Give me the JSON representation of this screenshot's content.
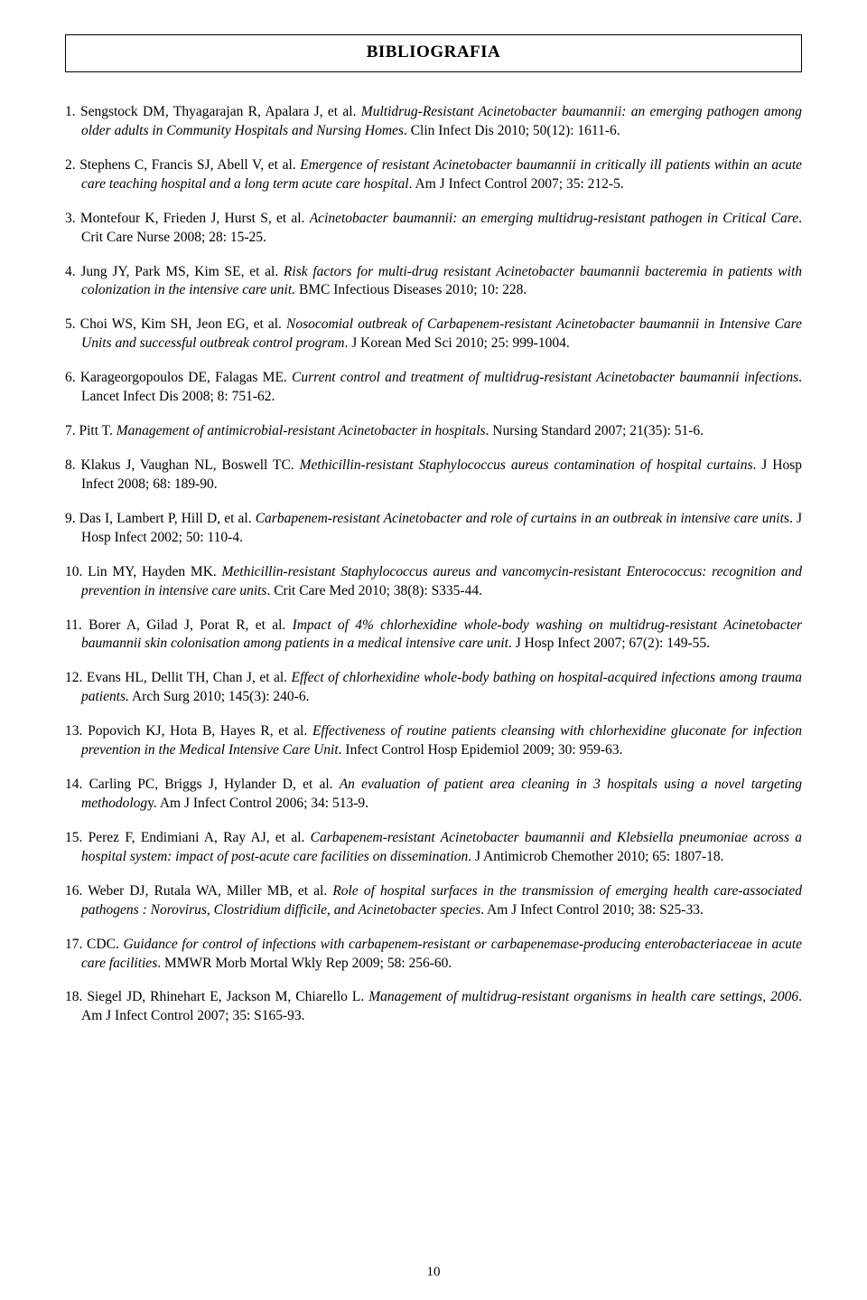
{
  "title": "BIBLIOGRAFIA",
  "page_number": "10",
  "fonts": {
    "body_family": "Times New Roman",
    "body_size_pt": 11.5,
    "title_size_pt": 14,
    "title_weight": "bold"
  },
  "colors": {
    "text": "#000000",
    "background": "#ffffff",
    "border": "#000000"
  },
  "references": [
    {
      "num": "1.",
      "authors": "Sengstock DM, Thyagarajan R, Apalara J, et al.",
      "title_italic": "Multidrug-Resistant Acinetobacter baumannii: an emerging pathogen among older adults in Community Hospitals and Nursing Homes",
      "tail": ". Clin Infect Dis 2010; 50(12): 1611-6."
    },
    {
      "num": "2.",
      "authors": "Stephens C, Francis SJ, Abell V, et al.",
      "title_italic": "Emergence of resistant Acinetobacter baumannii in critically ill patients within an acute care teaching hospital and a long term acute care hospital",
      "tail": ". Am J Infect Control 2007; 35: 212-5."
    },
    {
      "num": "3.",
      "authors": "Montefour K, Frieden J, Hurst S, et al.",
      "title_italic": "Acinetobacter baumannii: an emerging multidrug-resistant pathogen in Critical Care",
      "tail": ". Crit Care Nurse 2008; 28: 15-25."
    },
    {
      "num": "4.",
      "authors": "Jung JY, Park MS, Kim SE, et al.",
      "title_italic": "Risk factors for multi-drug resistant Acinetobacter baumannii bacteremia in patients with colonization in the intensive care unit.",
      "tail": " BMC Infectious Diseases 2010; 10: 228."
    },
    {
      "num": "5.",
      "authors": "Choi WS, Kim SH, Jeon EG, et al.",
      "title_italic": "Nosocomial outbreak of Carbapenem-resistant Acinetobacter baumannii in Intensive Care Units and successful outbreak control program",
      "tail": ". J Korean Med Sci 2010; 25: 999-1004."
    },
    {
      "num": "6.",
      "authors": "Karageorgopoulos DE, Falagas ME.",
      "title_italic": "Current control and treatment of multidrug-resistant Acinetobacter baumannii infections",
      "tail": ". Lancet Infect Dis 2008; 8: 751-62."
    },
    {
      "num": "7.",
      "authors": "Pitt T.",
      "title_italic": "Management of antimicrobial-resistant Acinetobacter in hospitals",
      "tail": ". Nursing Standard 2007; 21(35): 51-6."
    },
    {
      "num": "8.",
      "authors": "Klakus J, Vaughan NL, Boswell TC.",
      "title_italic": "Methicillin-resistant Staphylococcus aureus contamination of hospital curtains",
      "tail": ". J Hosp Infect 2008; 68: 189-90."
    },
    {
      "num": "9.",
      "authors": "Das I, Lambert P, Hill D, et al.",
      "title_italic": "Carbapenem-resistant Acinetobacter and role of curtains in an outbreak in intensive care unit",
      "tail": "s. J Hosp Infect 2002; 50: 110-4."
    },
    {
      "num": "10.",
      "authors": "Lin MY, Hayden MK.",
      "title_italic": "Methicillin-resistant Staphylococcus aureus and vancomycin-resistant Enterococcus: recognition and prevention in intensive care units",
      "tail": ". Crit Care Med 2010; 38(8): S335-44."
    },
    {
      "num": "11.",
      "authors": "Borer A, Gilad J, Porat R, et al.",
      "title_italic": "Impact of 4% chlorhexidine whole-body washing on multidrug-resistant Acinetobacter baumannii skin colonisation among patients in a medical intensive care unit",
      "tail": ". J Hosp Infect 2007; 67(2): 149-55."
    },
    {
      "num": "12.",
      "authors": "Evans HL, Dellit TH, Chan J, et al.",
      "title_italic": "Effect of chlorhexidine whole-body bathing on hospital-acquired infections among trauma patients.",
      "tail": " Arch Surg 2010; 145(3): 240-6."
    },
    {
      "num": "13.",
      "authors": "Popovich KJ, Hota B, Hayes R, et al.",
      "title_italic": "Effectiveness of routine patients cleansing with chlorhexidine gluconate for infection prevention in the Medical Intensive Care Unit",
      "tail": ". Infect Control Hosp Epidemiol 2009; 30: 959-63."
    },
    {
      "num": "14.",
      "authors": "Carling PC, Briggs J, Hylander D, et al.",
      "title_italic": "An evaluation of patient area cleaning in 3 hospitals using a novel targeting methodolog",
      "tail": "y. Am J Infect Control 2006; 34: 513-9."
    },
    {
      "num": "15.",
      "authors": "Perez F, Endimiani A, Ray AJ, et al.",
      "title_italic": "Carbapenem-resistant Acinetobacter baumannii and Klebsiella pneumoniae across a hospital system: impact of post-acute care facilities on dissemination",
      "tail": ". J Antimicrob Chemother 2010; 65: 1807-18."
    },
    {
      "num": "16.",
      "authors": "Weber DJ, Rutala WA, Miller MB, et al.",
      "title_italic": "Role of hospital surfaces in the transmission of emerging health care-associated pathogens : Norovirus, Clostridium difficile, and Acinetobacter species",
      "tail": ". Am J Infect Control 2010; 38: S25-33."
    },
    {
      "num": "17.",
      "authors": "CDC.",
      "title_italic": "Guidance for control of infections with carbapenem-resistant or carbapenemase-producing enterobacteriaceae in acute care facilities",
      "tail": ". MMWR Morb Mortal Wkly Rep 2009; 58: 256-60."
    },
    {
      "num": "18.",
      "authors": "Siegel JD, Rhinehart E, Jackson M, Chiarello L.",
      "title_italic": "Management of multidrug-resistant organisms in health care settings, 2006",
      "tail": ". Am J Infect Control 2007; 35: S165-93."
    }
  ]
}
